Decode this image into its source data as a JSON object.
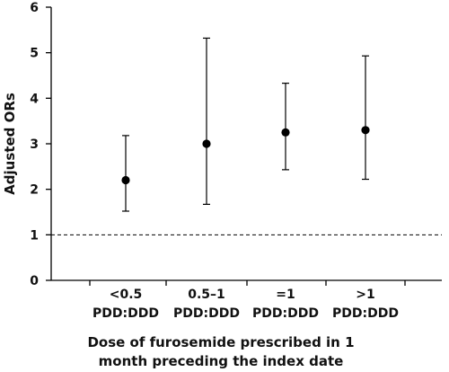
{
  "chart_data": {
    "type": "scatter",
    "title": "",
    "ylabel": "Adjusted ORs",
    "xlabel_lines": [
      "Dose of furosemide prescribed in 1",
      "month preceding the index date"
    ],
    "ylim": [
      0,
      6
    ],
    "yticks": [
      0,
      1,
      2,
      3,
      4,
      5,
      6
    ],
    "categories": [
      {
        "line1": "<0.5",
        "line2": "PDD:DDD"
      },
      {
        "line1": "0.5–1",
        "line2": "PDD:DDD"
      },
      {
        "line1": "=1",
        "line2": "PDD:DDD"
      },
      {
        "line1": ">1",
        "line2": "PDD:DDD"
      }
    ],
    "estimates": [
      2.2,
      3.0,
      3.25,
      3.3
    ],
    "lower": [
      1.52,
      1.67,
      2.43,
      2.22
    ],
    "upper": [
      3.18,
      5.32,
      4.33,
      4.93
    ],
    "reference_line": 1,
    "reference_style": "dashed",
    "grid": false,
    "colors": {
      "marks": "#000000",
      "axis": "#000000"
    }
  }
}
